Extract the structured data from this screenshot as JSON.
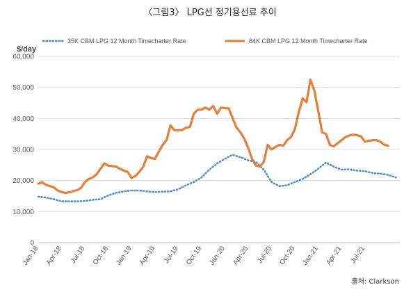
{
  "title": "〈그림3〉 LPG선 정기용선료 추이",
  "source": "출처: Clarkson",
  "chart_data": {
    "type": "line",
    "ylabel": "$/day",
    "ylim": [
      0,
      60000
    ],
    "yticks": [
      "0",
      "10,000",
      "20,000",
      "30,000",
      "40,000",
      "50,000",
      "60,000"
    ],
    "xticks": [
      "Jan-18",
      "Apr-18",
      "Jul-18",
      "Oct-18",
      "Jan-19",
      "Apr-19",
      "Jul-19",
      "Oct-19",
      "Jan-20",
      "Apr-20",
      "Jul-20",
      "Oct-20",
      "Jan-21",
      "Apr-21",
      "Jul-21"
    ],
    "x_start": "2018-01",
    "grid": "horizontal",
    "legend_position": "top",
    "series": [
      {
        "name": "35K CBM LPG 12 Month Timecharter Rate",
        "color": "#4f8fcf",
        "style": "dotted",
        "points": [
          [
            0,
            14800
          ],
          [
            1,
            14500
          ],
          [
            2,
            14000
          ],
          [
            3,
            13300
          ],
          [
            4,
            13300
          ],
          [
            5,
            13300
          ],
          [
            6,
            13400
          ],
          [
            7,
            13800
          ],
          [
            8,
            14000
          ],
          [
            9,
            15200
          ],
          [
            10,
            16000
          ],
          [
            11,
            16500
          ],
          [
            12,
            16800
          ],
          [
            13,
            16800
          ],
          [
            14,
            16500
          ],
          [
            15,
            16300
          ],
          [
            16,
            16400
          ],
          [
            17,
            16500
          ],
          [
            18,
            17200
          ],
          [
            19,
            18500
          ],
          [
            20,
            19500
          ],
          [
            21,
            21000
          ],
          [
            22,
            23500
          ],
          [
            23,
            25500
          ],
          [
            24,
            27000
          ],
          [
            25,
            28300
          ],
          [
            26,
            27500
          ],
          [
            27,
            26500
          ],
          [
            28,
            26000
          ],
          [
            29,
            23500
          ],
          [
            30,
            19500
          ],
          [
            31,
            18200
          ],
          [
            32,
            18500
          ],
          [
            33,
            19500
          ],
          [
            34,
            20500
          ],
          [
            35,
            22000
          ],
          [
            36,
            23800
          ],
          [
            37,
            25800
          ],
          [
            38,
            24500
          ],
          [
            39,
            23500
          ],
          [
            40,
            23600
          ],
          [
            41,
            23200
          ],
          [
            42,
            23000
          ],
          [
            43,
            22400
          ],
          [
            44,
            22200
          ],
          [
            45,
            21800
          ],
          [
            46,
            21000
          ]
        ]
      },
      {
        "name": "84K CBM LPG 12 Month Timecharter Rate",
        "color": "#e67e3a",
        "style": "solid",
        "points": [
          [
            0,
            19000
          ],
          [
            0.5,
            19400
          ],
          [
            1,
            18600
          ],
          [
            1.5,
            18200
          ],
          [
            2,
            17800
          ],
          [
            2.5,
            16800
          ],
          [
            3,
            16300
          ],
          [
            3.5,
            16000
          ],
          [
            4,
            16200
          ],
          [
            4.5,
            16600
          ],
          [
            5,
            16900
          ],
          [
            5.5,
            17600
          ],
          [
            6,
            19500
          ],
          [
            6.5,
            20500
          ],
          [
            7,
            21000
          ],
          [
            7.5,
            22000
          ],
          [
            8,
            23800
          ],
          [
            8.5,
            25500
          ],
          [
            9,
            24800
          ],
          [
            10,
            24500
          ],
          [
            10.5,
            23800
          ],
          [
            11,
            23200
          ],
          [
            11.5,
            22800
          ],
          [
            12,
            20800
          ],
          [
            12.5,
            21500
          ],
          [
            13,
            22800
          ],
          [
            13.5,
            24500
          ],
          [
            14,
            27800
          ],
          [
            14.5,
            27200
          ],
          [
            15,
            27000
          ],
          [
            16,
            31500
          ],
          [
            16.5,
            33000
          ],
          [
            17,
            37800
          ],
          [
            17.5,
            36200
          ],
          [
            18,
            36200
          ],
          [
            18.5,
            36300
          ],
          [
            19,
            37000
          ],
          [
            19.5,
            37200
          ],
          [
            20,
            41500
          ],
          [
            20.5,
            42800
          ],
          [
            21,
            42800
          ],
          [
            21.5,
            43500
          ],
          [
            22,
            42800
          ],
          [
            22.5,
            44000
          ],
          [
            23,
            41500
          ],
          [
            23.5,
            43500
          ],
          [
            24,
            43300
          ],
          [
            24.5,
            43200
          ],
          [
            25,
            40000
          ],
          [
            25.5,
            37000
          ],
          [
            26,
            35500
          ],
          [
            26.5,
            33500
          ],
          [
            27,
            30500
          ],
          [
            27.5,
            27000
          ],
          [
            28,
            24800
          ],
          [
            28.5,
            24500
          ],
          [
            29,
            26000
          ],
          [
            29.5,
            31500
          ],
          [
            30,
            30000
          ],
          [
            30.5,
            30800
          ],
          [
            31,
            31500
          ],
          [
            31.5,
            31200
          ],
          [
            32,
            33000
          ],
          [
            32.5,
            34000
          ],
          [
            33,
            36500
          ],
          [
            33.5,
            42000
          ],
          [
            34,
            46500
          ],
          [
            34.5,
            45200
          ],
          [
            35,
            52500
          ],
          [
            35.5,
            49000
          ],
          [
            36,
            42500
          ],
          [
            36.5,
            35500
          ],
          [
            37,
            35000
          ],
          [
            37.5,
            31500
          ],
          [
            38,
            31000
          ],
          [
            38.5,
            32000
          ],
          [
            39,
            33000
          ],
          [
            39.5,
            34000
          ],
          [
            40,
            34500
          ],
          [
            40.5,
            34800
          ],
          [
            41,
            34600
          ],
          [
            41.5,
            34200
          ],
          [
            42,
            32500
          ],
          [
            42.5,
            32800
          ],
          [
            43,
            33000
          ],
          [
            43.5,
            33000
          ],
          [
            44,
            32500
          ],
          [
            44.5,
            31500
          ],
          [
            45,
            31200
          ]
        ]
      }
    ]
  }
}
